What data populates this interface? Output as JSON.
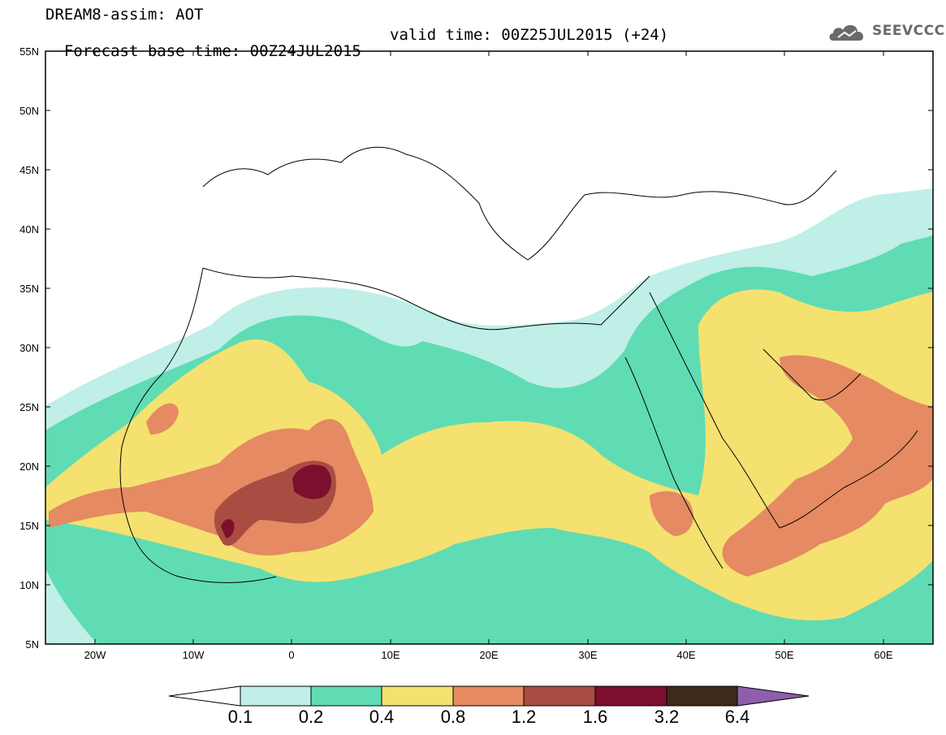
{
  "header": {
    "line1": "DREAM8-assim: AOT",
    "base_time": "Forecast base time: 00Z24JUL2015",
    "valid_time": "valid time: 00Z25JUL2015 (+24)"
  },
  "logo": {
    "text": "SEEVCCC",
    "icon": "cloud-icon"
  },
  "map": {
    "lat_labels": [
      "55N",
      "50N",
      "45N",
      "40N",
      "35N",
      "30N",
      "25N",
      "20N",
      "15N",
      "10N",
      "5N"
    ],
    "lon_labels": [
      "20W",
      "10W",
      "0",
      "10E",
      "20E",
      "30E",
      "40E",
      "50E",
      "60E"
    ],
    "extent": {
      "lon_min": -25,
      "lon_max": 65,
      "lat_min": 5,
      "lat_max": 55
    }
  },
  "colorbar": {
    "labels": [
      "0.1",
      "0.2",
      "0.4",
      "0.8",
      "1.2",
      "1.6",
      "3.2",
      "6.4"
    ],
    "colors": [
      "#ffffff",
      "#bfefe7",
      "#5fdcb4",
      "#f4e170",
      "#e58a62",
      "#a94d42",
      "#7d0f2e",
      "#3f2a1a",
      "#8e5eaa"
    ]
  }
}
